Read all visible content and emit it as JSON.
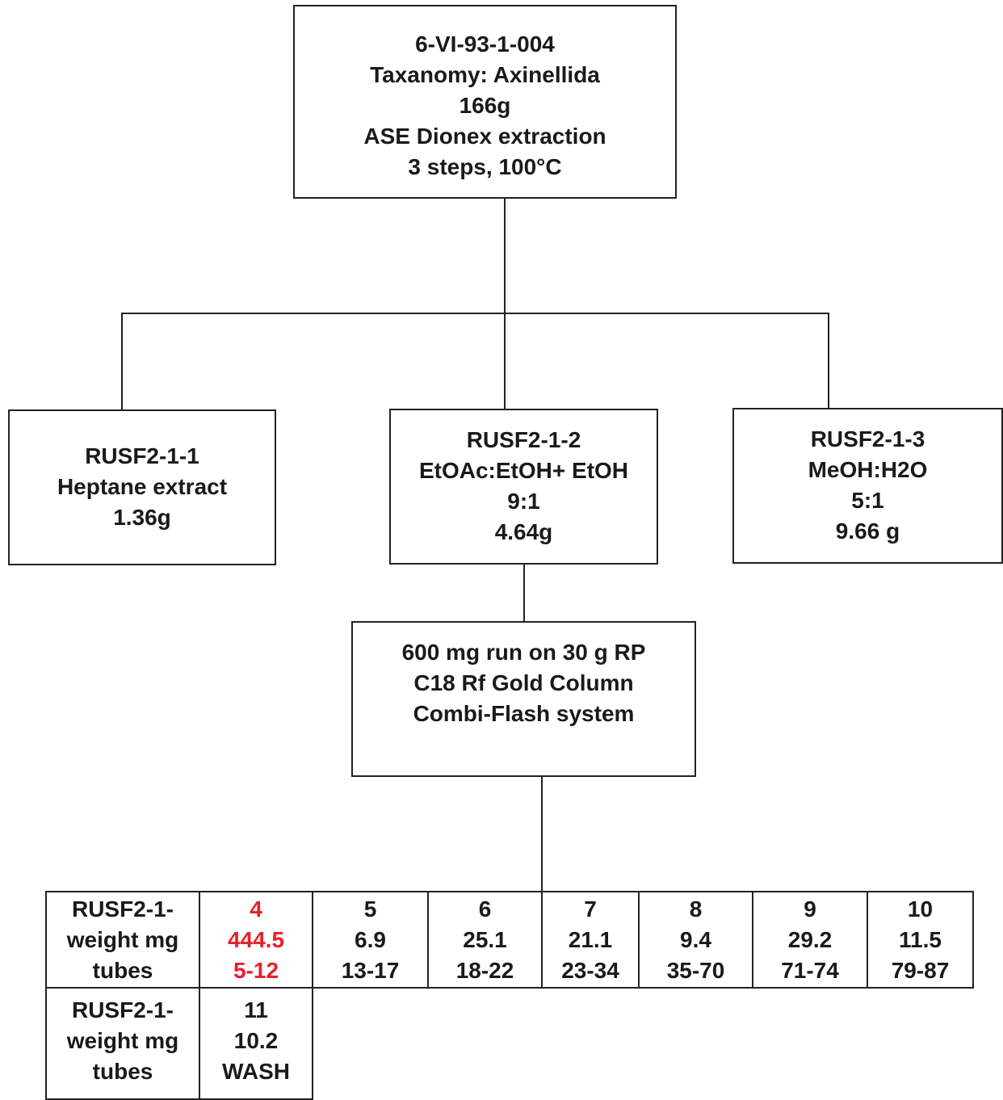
{
  "root": {
    "lines": [
      "6-VI-93-1-004",
      "Taxanomy: Axinellida",
      "166g",
      "ASE Dionex extraction",
      "3 steps, 100°C"
    ]
  },
  "extracts": [
    {
      "lines": [
        "RUSF2-1-1",
        "Heptane extract",
        "1.36g"
      ]
    },
    {
      "lines": [
        "RUSF2-1-2",
        "EtOAc:EtOH+ EtOH",
        "9:1",
        "4.64g"
      ]
    },
    {
      "lines": [
        "RUSF2-1-3",
        "MeOH:H2O",
        "5:1",
        "9.66 g"
      ]
    }
  ],
  "column_run": {
    "lines": [
      "600 mg run on 30 g RP",
      "C18 Rf Gold Column",
      "Combi-Flash system"
    ]
  },
  "fraction_table": {
    "row1_header": [
      "RUSF2-1-",
      "weight mg",
      "tubes"
    ],
    "row1": [
      {
        "fraction": "4",
        "weight": "444.5",
        "tubes": "5-12",
        "highlight": "#e8202a"
      },
      {
        "fraction": "5",
        "weight": "6.9",
        "tubes": "13-17"
      },
      {
        "fraction": "6",
        "weight": "25.1",
        "tubes": "18-22"
      },
      {
        "fraction": "7",
        "weight": "21.1",
        "tubes": "23-34"
      },
      {
        "fraction": "8",
        "weight": "9.4",
        "tubes": "35-70"
      },
      {
        "fraction": "9",
        "weight": "29.2",
        "tubes": "71-74"
      },
      {
        "fraction": "10",
        "weight": "11.5",
        "tubes": "79-87"
      }
    ],
    "row2_header": [
      "RUSF2-1-",
      "weight mg",
      "tubes"
    ],
    "row2": [
      {
        "fraction": "11",
        "weight": "10.2",
        "tubes": "WASH"
      }
    ]
  }
}
